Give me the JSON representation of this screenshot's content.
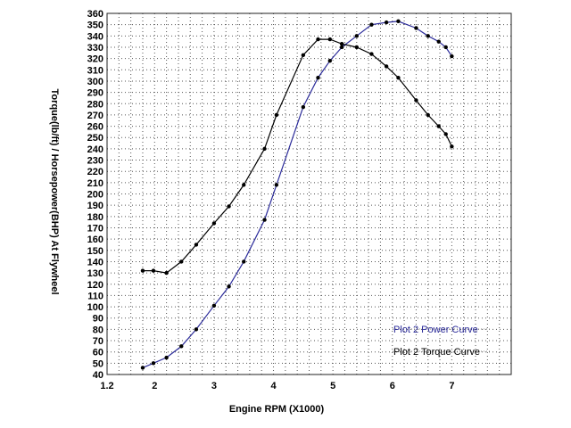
{
  "chart_data": {
    "type": "line",
    "xlabel": "Engine RPM (X1000)",
    "ylabel": "Torque(lb/ft) / Horsepower(BHP) At Flywheel",
    "xlim": [
      1.2,
      8.0
    ],
    "ylim": [
      40,
      360
    ],
    "x_ticks": [
      "1.2",
      "2",
      "3",
      "4",
      "5",
      "6",
      "7"
    ],
    "x_tick_values": [
      1.2,
      2,
      3,
      4,
      5,
      6,
      7
    ],
    "y_ticks": [
      40,
      50,
      60,
      70,
      80,
      90,
      100,
      110,
      120,
      130,
      140,
      150,
      160,
      170,
      180,
      190,
      200,
      210,
      220,
      230,
      240,
      250,
      260,
      270,
      280,
      290,
      300,
      310,
      320,
      330,
      340,
      350,
      360
    ],
    "grid": true,
    "legend_placement": "bottom-right",
    "series": [
      {
        "name": "Plot 2 Power Curve",
        "color": "#2b2b9a",
        "x": [
          1.8,
          1.98,
          2.2,
          2.45,
          2.7,
          3.0,
          3.25,
          3.5,
          3.85,
          4.05,
          4.5,
          4.75,
          4.95,
          5.15,
          5.4,
          5.65,
          5.9,
          6.1,
          6.4,
          6.6,
          6.78,
          6.9,
          7.0
        ],
        "values": [
          46,
          50,
          55,
          65,
          80,
          101,
          118,
          140,
          177,
          208,
          277,
          303,
          318,
          330,
          340,
          350,
          352,
          353,
          347,
          340,
          335,
          330,
          322
        ]
      },
      {
        "name": "Plot 2 Torque Curve",
        "color": "#000000",
        "x": [
          1.8,
          1.98,
          2.2,
          2.45,
          2.7,
          3.0,
          3.25,
          3.5,
          3.85,
          4.05,
          4.5,
          4.75,
          4.95,
          5.15,
          5.4,
          5.65,
          5.9,
          6.1,
          6.4,
          6.6,
          6.78,
          6.9,
          7.0
        ],
        "values": [
          132,
          132,
          130,
          140,
          155,
          174,
          189,
          208,
          240,
          270,
          323,
          337,
          337,
          333,
          330,
          324,
          313,
          303,
          283,
          270,
          260,
          253,
          242
        ]
      }
    ]
  }
}
